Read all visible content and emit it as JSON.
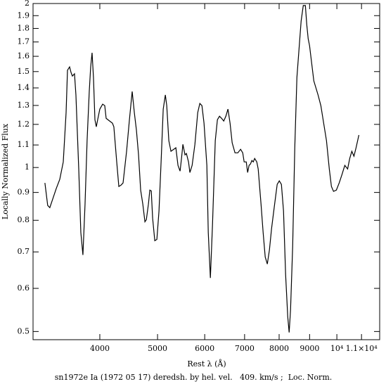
{
  "chart_data": {
    "type": "line",
    "title": "sn1972e Ia (1972 05 17) deredsh. by hel. vel.   409. km/s ;  Loc. Norm.",
    "xlabel": "Rest λ (Å)",
    "ylabel": "Locally Normalized Flux",
    "xscale": "log",
    "yscale": "log",
    "xlim": [
      3090,
      11800
    ],
    "ylim": [
      0.483,
      2
    ],
    "xticks": [
      4000,
      5000,
      6000,
      7000,
      8000,
      9000,
      {
        "value": 10000,
        "label": "10⁴"
      },
      {
        "value": 11000,
        "label": "1.1×10⁴"
      }
    ],
    "yticks": [
      0.5,
      0.6,
      0.7,
      0.8,
      0.9,
      1,
      1.1,
      1.2,
      1.3,
      1.4,
      1.5,
      1.6,
      1.7,
      1.8,
      1.9,
      2
    ],
    "x": [
      3235,
      3270,
      3297,
      3334,
      3380,
      3426,
      3473,
      3511,
      3530,
      3559,
      3579,
      3597,
      3627,
      3647,
      3687,
      3717,
      3747,
      3778,
      3808,
      3840,
      3861,
      3882,
      3903,
      3925,
      3946,
      3967,
      4000,
      4044,
      4077,
      4099,
      4155,
      4200,
      4223,
      4270,
      4305,
      4341,
      4376,
      4436,
      4485,
      4533,
      4571,
      4608,
      4646,
      4684,
      4723,
      4762,
      4788,
      4827,
      4853,
      4880,
      4906,
      4947,
      4987,
      5028,
      5069,
      5111,
      5153,
      5181,
      5223,
      5266,
      5324,
      5367,
      5411,
      5455,
      5485,
      5515,
      5560,
      5590,
      5636,
      5666,
      5715,
      5777,
      5840,
      5888,
      5936,
      5984,
      6050,
      6083,
      6133,
      6183,
      6250,
      6302,
      6353,
      6405,
      6458,
      6511,
      6564,
      6618,
      6672,
      6745,
      6819,
      6893,
      6950,
      6988,
      7045,
      7083,
      7122,
      7161,
      7200,
      7239,
      7278,
      7338,
      7378,
      7459,
      7520,
      7581,
      7643,
      7706,
      7769,
      7854,
      7940,
      8005,
      8071,
      8137,
      8203,
      8271,
      8316,
      8361,
      8430,
      8499,
      8569,
      8639,
      8710,
      8782,
      8854,
      8902,
      8951,
      8999,
      9073,
      9148,
      9223,
      9299,
      9400,
      9503,
      9607,
      9712,
      9792,
      9872,
      9981,
      10091,
      10201,
      10312,
      10425,
      10510,
      10596,
      10683,
      10770,
      10889
    ],
    "series": [
      {
        "color": "#000000",
        "values": [
          0.937,
          0.852,
          0.844,
          0.875,
          0.915,
          0.951,
          1.024,
          1.261,
          1.508,
          1.53,
          1.494,
          1.472,
          1.486,
          1.359,
          0.994,
          0.76,
          0.691,
          0.857,
          1.12,
          1.379,
          1.53,
          1.624,
          1.463,
          1.224,
          1.188,
          1.224,
          1.28,
          1.307,
          1.299,
          1.231,
          1.217,
          1.206,
          1.188,
          1.024,
          0.923,
          0.928,
          0.937,
          1.071,
          1.224,
          1.379,
          1.261,
          1.171,
          1.055,
          0.909,
          0.857,
          0.795,
          0.802,
          0.857,
          0.909,
          0.906,
          0.807,
          0.734,
          0.738,
          0.832,
          1.024,
          1.28,
          1.359,
          1.299,
          1.12,
          1.071,
          1.08,
          1.087,
          1.009,
          0.985,
          1.039,
          1.103,
          1.055,
          1.061,
          1.024,
          0.979,
          1.009,
          1.103,
          1.261,
          1.311,
          1.299,
          1.206,
          1.009,
          0.76,
          0.627,
          0.784,
          1.12,
          1.224,
          1.242,
          1.231,
          1.217,
          1.242,
          1.28,
          1.206,
          1.11,
          1.064,
          1.064,
          1.08,
          1.064,
          1.024,
          1.024,
          0.979,
          1.009,
          1.015,
          1.03,
          1.024,
          1.039,
          1.024,
          0.994,
          0.857,
          0.76,
          0.685,
          0.665,
          0.706,
          0.772,
          0.849,
          0.931,
          0.945,
          0.931,
          0.832,
          0.636,
          0.532,
          0.498,
          0.548,
          0.717,
          1.087,
          1.463,
          1.648,
          1.857,
          1.983,
          1.983,
          1.829,
          1.723,
          1.673,
          1.553,
          1.442,
          1.4,
          1.359,
          1.299,
          1.206,
          1.12,
          0.994,
          0.923,
          0.904,
          0.909,
          0.937,
          0.971,
          1.009,
          0.994,
          1.039,
          1.071,
          1.049,
          1.087,
          1.147
        ]
      }
    ]
  }
}
